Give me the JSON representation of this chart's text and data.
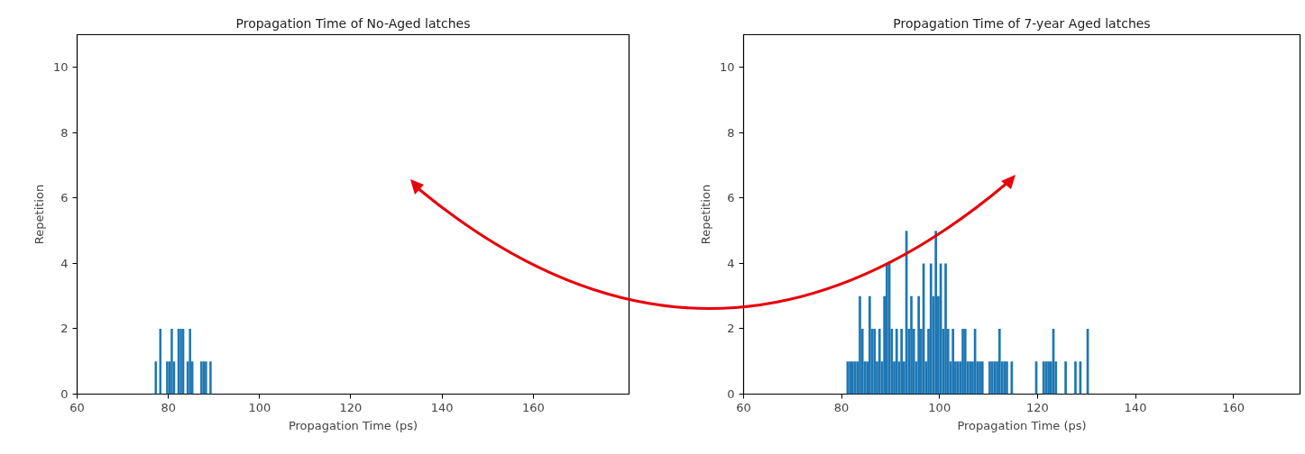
{
  "chart_data": [
    {
      "type": "histogram",
      "title": "Propagation Time of No-Aged latches",
      "xlabel": "Propagation Time (ps)",
      "ylabel": "Repetition",
      "color": "#1f77b4",
      "xlim": [
        60,
        181
      ],
      "ylim": [
        0,
        11
      ],
      "xticks": [
        60,
        80,
        100,
        120,
        140,
        160
      ],
      "yticks": [
        0,
        2,
        4,
        6,
        8,
        10
      ],
      "bins": [
        76.5,
        77,
        77.5,
        78,
        78.5,
        79,
        79.5,
        80,
        80.5,
        81,
        81.5,
        82,
        82.5,
        83,
        83.5,
        84,
        84.5,
        85,
        85.5,
        86,
        86.5,
        87,
        87.5,
        88,
        88.5,
        89,
        89.5,
        90
      ],
      "values": [
        0,
        1,
        0,
        2,
        0,
        0,
        1,
        1,
        2,
        1,
        0,
        2,
        2,
        2,
        0,
        1,
        2,
        1,
        0,
        0,
        0,
        1,
        1,
        1,
        0,
        1,
        0
      ]
    },
    {
      "type": "histogram",
      "title": "Propagation Time of 7-year Aged latches",
      "xlabel": "Propagation Time (ps)",
      "ylabel": "Repetition",
      "color": "#1f77b4",
      "xlim": [
        60,
        173.6
      ],
      "ylim": [
        0,
        11
      ],
      "xticks": [
        60,
        80,
        100,
        120,
        140,
        160
      ],
      "yticks": [
        0,
        2,
        4,
        6,
        8,
        10
      ],
      "bins": [
        81,
        81.5,
        82,
        82.5,
        83,
        83.5,
        84,
        84.5,
        85,
        85.5,
        86,
        86.5,
        87,
        87.5,
        88,
        88.5,
        89,
        89.5,
        90,
        90.5,
        91,
        91.5,
        92,
        92.5,
        93,
        93.5,
        94,
        94.5,
        95,
        95.5,
        96,
        96.5,
        97,
        97.5,
        98,
        98.5,
        99,
        99.5,
        100,
        100.5,
        101,
        101.5,
        102,
        102.5,
        103,
        103.5,
        104,
        104.5,
        105,
        105.5,
        106,
        106.5,
        107,
        107.5,
        108,
        108.5,
        109,
        109.5,
        110,
        110.5,
        111,
        111.5,
        112,
        112.5,
        113,
        113.5,
        114,
        114.5,
        115,
        115.5,
        116,
        116.5,
        117,
        117.5,
        118,
        118.5,
        119,
        119.5,
        120,
        120.5,
        121,
        121.5,
        122,
        122.5,
        123,
        123.5,
        124,
        124.5,
        125,
        125.5,
        126,
        126.5,
        127,
        127.5,
        128,
        128.5,
        129,
        129.5,
        130,
        130.5,
        131
      ],
      "values": [
        1,
        1,
        1,
        1,
        1,
        3,
        2,
        1,
        1,
        3,
        2,
        2,
        1,
        2,
        1,
        3,
        4,
        4,
        2,
        1,
        2,
        1,
        2,
        1,
        5,
        2,
        3,
        2,
        1,
        3,
        2,
        4,
        1,
        2,
        4,
        3,
        5,
        3,
        4,
        2,
        4,
        2,
        1,
        2,
        1,
        1,
        1,
        2,
        2,
        1,
        1,
        1,
        2,
        1,
        1,
        1,
        0,
        0,
        1,
        1,
        1,
        1,
        2,
        1,
        1,
        1,
        0,
        1,
        0,
        0,
        0,
        0,
        0,
        0,
        0,
        0,
        0,
        1,
        0,
        0,
        1,
        1,
        1,
        1,
        2,
        1,
        0,
        0,
        0,
        1,
        0,
        0,
        0,
        1,
        0,
        1,
        0,
        0,
        2,
        0
      ]
    }
  ]
}
